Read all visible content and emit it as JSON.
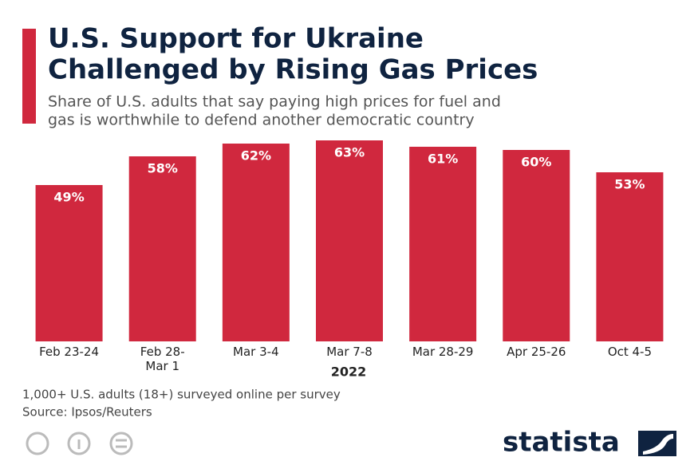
{
  "chart_data": {
    "type": "bar",
    "title_lines": [
      "U.S. Support for Ukraine",
      "Challenged by Rising Gas Prices"
    ],
    "subtitle_lines": [
      "Share of U.S. adults that say paying high prices for fuel and",
      "gas is worthwhile to defend another democratic country"
    ],
    "categories": [
      "Feb 23-24",
      "Feb 28-\nMar 1",
      "Mar 3-4",
      "Mar 7-8",
      "Mar 28-29",
      "Apr 25-26",
      "Oct 4-5"
    ],
    "values": [
      49,
      58,
      62,
      63,
      61,
      60,
      53
    ],
    "value_labels": [
      "49%",
      "58%",
      "62%",
      "63%",
      "61%",
      "60%",
      "53%"
    ],
    "color": "#d0283e",
    "x_label": "2022",
    "notes": [
      "1,000+ U.S. adults (18+) surveyed online per survey",
      "Source: Ipsos/Reuters"
    ]
  },
  "footer": {
    "brand": "statista"
  }
}
